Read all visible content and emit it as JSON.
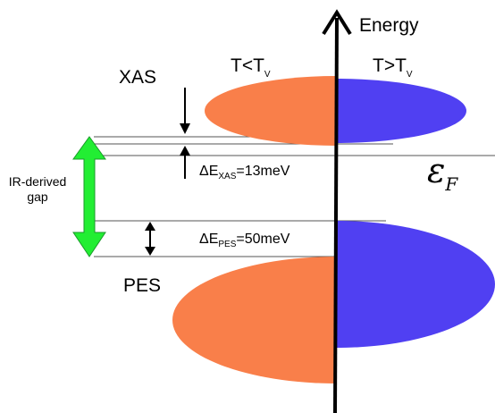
{
  "axis": {
    "label": "Energy"
  },
  "columns": {
    "left": {
      "base": "T<T",
      "sub": "V"
    },
    "right": {
      "base": "T>T",
      "sub": "V"
    }
  },
  "labels": {
    "xas": "XAS",
    "pes": "PES",
    "ir_line1": "IR-derived",
    "ir_line2": "gap",
    "fermi_symbol": "ε",
    "fermi_sub": "F"
  },
  "deltas": {
    "xas": {
      "prefix": "ΔE",
      "sub": "XAS",
      "value": "=13meV"
    },
    "pes": {
      "prefix": "ΔE",
      "sub": "PES",
      "value": "=50meV"
    }
  },
  "colors": {
    "low_temp": "#f97f4a",
    "high_temp": "#5040f2",
    "ir_arrow": "#22ee33",
    "axis": "#000000",
    "lines": "#555555"
  }
}
